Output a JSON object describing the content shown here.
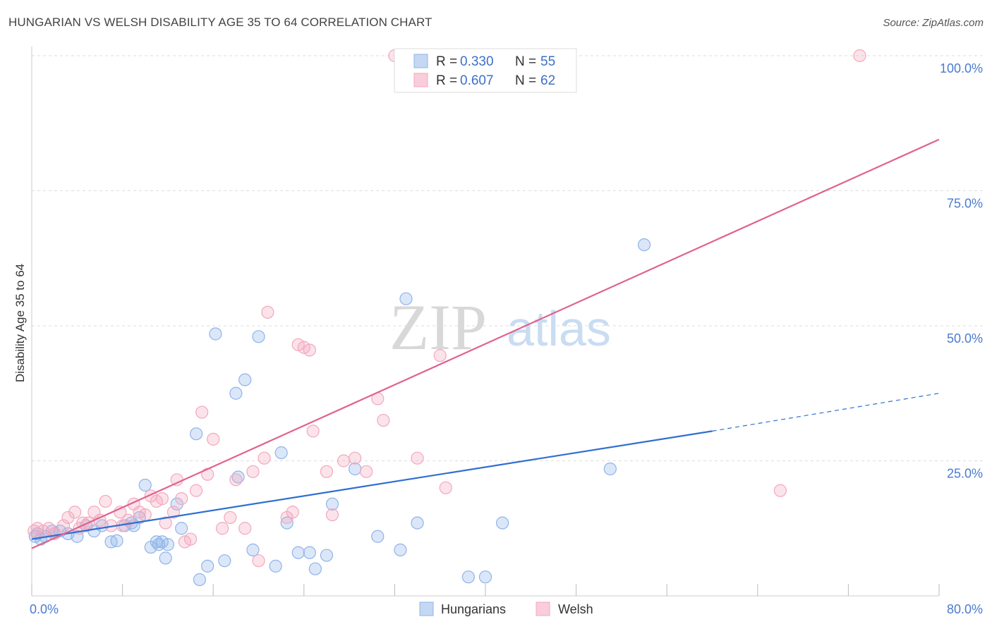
{
  "header": {
    "title": "HUNGARIAN VS WELSH DISABILITY AGE 35 TO 64 CORRELATION CHART",
    "source": "Source: ZipAtlas.com"
  },
  "watermark": {
    "zip": "ZIP",
    "atlas": "atlas"
  },
  "colors": {
    "hungarians": "#8fb4e8",
    "hungarians_line": "#2f6fd0",
    "welsh": "#f4a7bf",
    "welsh_line": "#e0628f",
    "tick_text": "#4a7bd0"
  },
  "legend": {
    "hungarians": {
      "r_label": "R = ",
      "r_value": "0.330",
      "n_label": "N = ",
      "n_value": "55"
    },
    "welsh": {
      "r_label": "R = ",
      "r_value": "0.607",
      "n_label": "N = ",
      "n_value": "62"
    }
  },
  "chart_data": {
    "type": "scatter",
    "title": "HUNGARIAN VS WELSH DISABILITY AGE 35 TO 64 CORRELATION CHART",
    "xlabel": "",
    "ylabel": "Disability Age 35 to 64",
    "xlim": [
      0,
      80
    ],
    "ylim": [
      0,
      100
    ],
    "x_tick_labels": [
      "0.0%",
      "80.0%"
    ],
    "y_ticks": [
      {
        "value": 25,
        "label": "25.0%"
      },
      {
        "value": 50,
        "label": "50.0%"
      },
      {
        "value": 75,
        "label": "75.0%"
      },
      {
        "value": 100,
        "label": "100.0%"
      }
    ],
    "legend_labels": [
      "Hungarians",
      "Welsh"
    ],
    "series": [
      {
        "name": "Hungarians",
        "points": [
          [
            0.5,
            11.5
          ],
          [
            0.8,
            10.5
          ],
          [
            1.2,
            11.0
          ],
          [
            1.8,
            12.0
          ],
          [
            2.5,
            12.0
          ],
          [
            3.2,
            11.5
          ],
          [
            4.0,
            11.0
          ],
          [
            4.8,
            13.0
          ],
          [
            5.5,
            12.0
          ],
          [
            6.2,
            13.0
          ],
          [
            7.0,
            10.0
          ],
          [
            7.5,
            10.2
          ],
          [
            8.2,
            13.0
          ],
          [
            8.8,
            13.5
          ],
          [
            9.0,
            13.0
          ],
          [
            9.5,
            14.5
          ],
          [
            10.0,
            20.5
          ],
          [
            10.5,
            9.0
          ],
          [
            11.0,
            10.0
          ],
          [
            11.2,
            9.5
          ],
          [
            11.5,
            10.0
          ],
          [
            11.8,
            7.0
          ],
          [
            12.0,
            9.5
          ],
          [
            12.8,
            17.0
          ],
          [
            13.2,
            12.5
          ],
          [
            14.5,
            30.0
          ],
          [
            14.8,
            3.0
          ],
          [
            15.5,
            5.5
          ],
          [
            16.2,
            48.5
          ],
          [
            17.0,
            6.5
          ],
          [
            18.0,
            37.5
          ],
          [
            18.2,
            22.0
          ],
          [
            18.8,
            40.0
          ],
          [
            19.5,
            8.5
          ],
          [
            20.0,
            48.0
          ],
          [
            21.5,
            5.5
          ],
          [
            22.0,
            26.5
          ],
          [
            22.5,
            13.5
          ],
          [
            23.5,
            8.0
          ],
          [
            24.5,
            8.0
          ],
          [
            25.0,
            5.0
          ],
          [
            26.0,
            7.5
          ],
          [
            26.5,
            17.0
          ],
          [
            28.5,
            23.5
          ],
          [
            30.5,
            11.0
          ],
          [
            32.5,
            8.5
          ],
          [
            33.0,
            55.0
          ],
          [
            34.0,
            13.5
          ],
          [
            38.5,
            3.5
          ],
          [
            40.0,
            3.5
          ],
          [
            41.5,
            13.5
          ],
          [
            51.0,
            23.5
          ],
          [
            54.0,
            65.0
          ],
          [
            0.3,
            11.0
          ],
          [
            2.0,
            11.5
          ]
        ]
      },
      {
        "name": "Welsh",
        "points": [
          [
            0.5,
            12.5
          ],
          [
            1.0,
            12.0
          ],
          [
            1.5,
            12.5
          ],
          [
            2.0,
            11.5
          ],
          [
            2.8,
            13.0
          ],
          [
            3.2,
            14.5
          ],
          [
            3.8,
            15.5
          ],
          [
            4.5,
            13.5
          ],
          [
            5.0,
            13.5
          ],
          [
            5.5,
            15.5
          ],
          [
            6.0,
            14.0
          ],
          [
            6.5,
            17.5
          ],
          [
            7.0,
            13.0
          ],
          [
            7.8,
            15.5
          ],
          [
            8.5,
            14.0
          ],
          [
            9.0,
            17.0
          ],
          [
            9.5,
            15.5
          ],
          [
            10.0,
            15.0
          ],
          [
            10.5,
            18.5
          ],
          [
            11.0,
            17.5
          ],
          [
            11.5,
            18.0
          ],
          [
            11.8,
            13.5
          ],
          [
            12.5,
            15.5
          ],
          [
            12.8,
            21.5
          ],
          [
            13.2,
            18.0
          ],
          [
            13.5,
            10.0
          ],
          [
            14.0,
            10.5
          ],
          [
            14.5,
            19.5
          ],
          [
            15.0,
            34.0
          ],
          [
            15.5,
            22.5
          ],
          [
            16.0,
            29.0
          ],
          [
            16.8,
            12.5
          ],
          [
            17.5,
            14.5
          ],
          [
            18.0,
            21.5
          ],
          [
            18.8,
            12.5
          ],
          [
            19.5,
            23.0
          ],
          [
            20.0,
            6.5
          ],
          [
            20.5,
            25.5
          ],
          [
            20.8,
            52.5
          ],
          [
            22.5,
            14.5
          ],
          [
            23.0,
            15.5
          ],
          [
            23.5,
            46.5
          ],
          [
            24.0,
            46.0
          ],
          [
            24.5,
            45.5
          ],
          [
            24.8,
            30.5
          ],
          [
            26.0,
            23.0
          ],
          [
            26.5,
            15.0
          ],
          [
            27.5,
            25.0
          ],
          [
            28.5,
            25.5
          ],
          [
            29.5,
            23.0
          ],
          [
            30.5,
            36.5
          ],
          [
            31.0,
            32.5
          ],
          [
            32.0,
            100.0
          ],
          [
            33.0,
            100.0
          ],
          [
            34.0,
            25.5
          ],
          [
            36.0,
            44.5
          ],
          [
            36.5,
            20.0
          ],
          [
            66.0,
            19.5
          ],
          [
            73.0,
            100.0
          ],
          [
            0.2,
            12.0
          ],
          [
            4.2,
            12.5
          ],
          [
            8.0,
            13.0
          ]
        ]
      }
    ],
    "trend_lines": [
      {
        "name": "Hungarians",
        "x_start": 0,
        "y_start": 10.5,
        "x_end": 60,
        "y_end": 30.5,
        "dashed_to_x": 80,
        "dashed_to_y": 37.5
      },
      {
        "name": "Welsh",
        "x_start": 0,
        "y_start": 8.8,
        "x_end": 80,
        "y_end": 84.5
      }
    ]
  }
}
